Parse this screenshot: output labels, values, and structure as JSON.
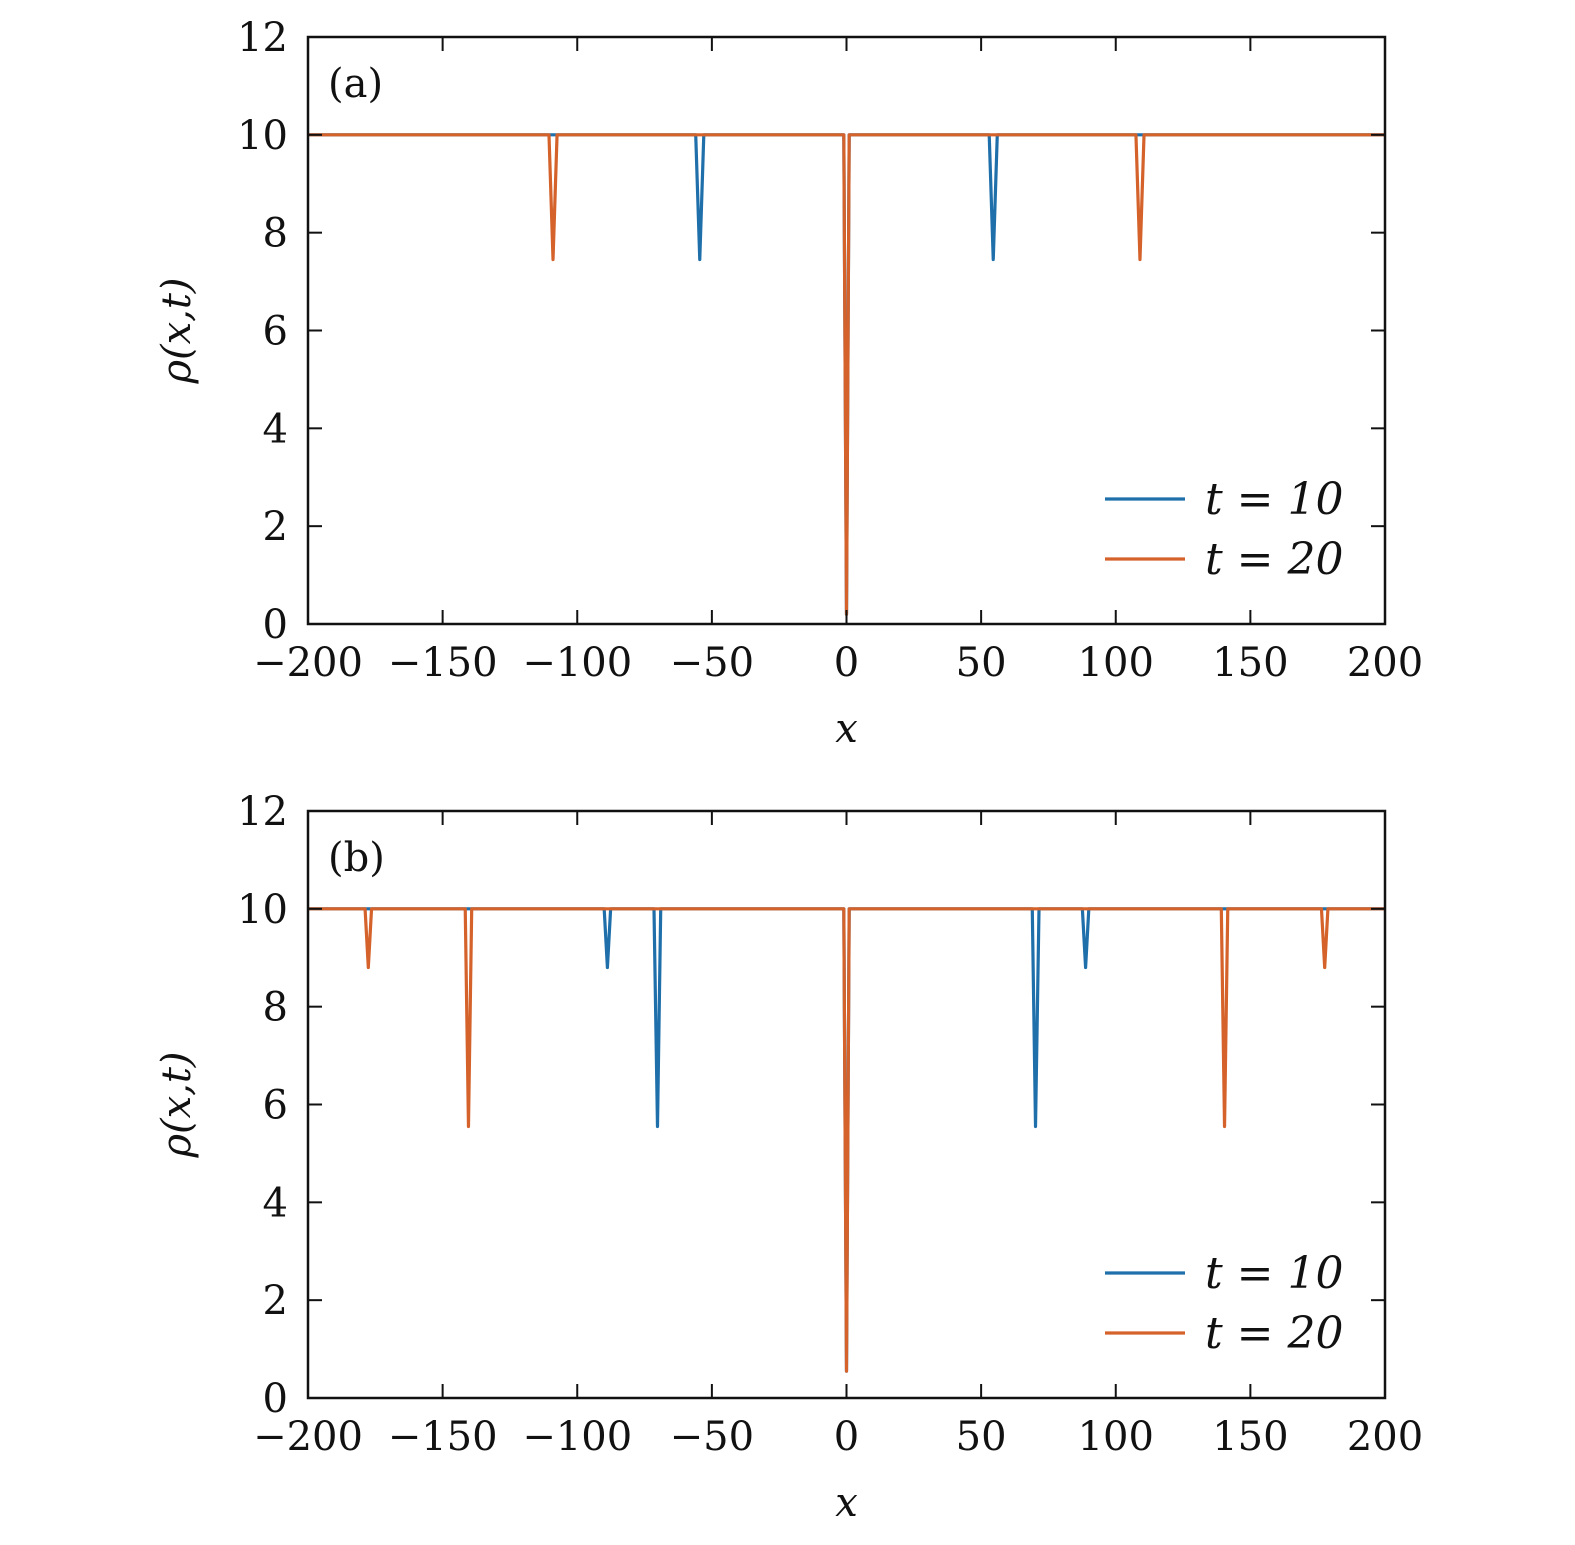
{
  "chart_data": [
    {
      "type": "line",
      "panel_label": "(a)",
      "xlabel": "x",
      "ylabel": "ρ(x,t)",
      "xlim": [
        -200,
        200
      ],
      "ylim": [
        0,
        12
      ],
      "x_ticks": [
        -200,
        -150,
        -100,
        -50,
        0,
        50,
        100,
        150,
        200
      ],
      "x_tick_labels": [
        "−200",
        "−150",
        "−100",
        "−50",
        "0",
        "50",
        "100",
        "150",
        "200"
      ],
      "y_ticks": [
        0,
        2,
        4,
        6,
        8,
        10,
        12
      ],
      "y_tick_labels": [
        "0",
        "2",
        "4",
        "6",
        "8",
        "10",
        "12"
      ],
      "legend_position": "bottom-right",
      "series": [
        {
          "name": "t = 10",
          "color": "#1f6fab",
          "x": [
            -200,
            -56,
            -54.5,
            -53,
            -1,
            0,
            1,
            53,
            54.5,
            56,
            200
          ],
          "y": [
            10,
            10,
            7.45,
            10,
            10,
            0.2,
            10,
            10,
            7.45,
            10,
            10
          ]
        },
        {
          "name": "t = 20",
          "color": "#d4622a",
          "x": [
            -200,
            -110.5,
            -109,
            -107.5,
            -1,
            0,
            1,
            107.5,
            109,
            110.5,
            200
          ],
          "y": [
            10,
            10,
            7.45,
            10,
            10,
            0.2,
            10,
            10,
            7.45,
            10,
            10
          ]
        }
      ]
    },
    {
      "type": "line",
      "panel_label": "(b)",
      "xlabel": "x",
      "ylabel": "ρ(x,t)",
      "xlim": [
        -200,
        200
      ],
      "ylim": [
        0,
        12
      ],
      "x_ticks": [
        -200,
        -150,
        -100,
        -50,
        0,
        50,
        100,
        150,
        200
      ],
      "x_tick_labels": [
        "−200",
        "−150",
        "−100",
        "−50",
        "0",
        "50",
        "100",
        "150",
        "200"
      ],
      "y_ticks": [
        0,
        2,
        4,
        6,
        8,
        10,
        12
      ],
      "y_tick_labels": [
        "0",
        "2",
        "4",
        "6",
        "8",
        "10",
        "12"
      ],
      "legend_position": "bottom-right",
      "series": [
        {
          "name": "t = 10",
          "color": "#1f6fab",
          "x": [
            -200,
            -90,
            -88.8,
            -87.6,
            -71.5,
            -70.2,
            -69,
            -1,
            0,
            1,
            69,
            70.2,
            71.5,
            87.6,
            88.8,
            90,
            200
          ],
          "y": [
            10,
            10,
            8.8,
            10,
            10,
            5.55,
            10,
            10,
            0.55,
            10,
            10,
            5.55,
            10,
            10,
            8.8,
            10,
            10
          ]
        },
        {
          "name": "t = 20",
          "color": "#d4622a",
          "x": [
            -200,
            -178.8,
            -177.6,
            -176.4,
            -141.6,
            -140.4,
            -139.2,
            -1,
            0,
            1,
            139.2,
            140.4,
            141.6,
            176.4,
            177.6,
            178.8,
            200
          ],
          "y": [
            10,
            10,
            8.8,
            10,
            10,
            5.55,
            10,
            10,
            0.55,
            10,
            10,
            5.55,
            10,
            10,
            8.8,
            10,
            10
          ]
        }
      ]
    }
  ]
}
